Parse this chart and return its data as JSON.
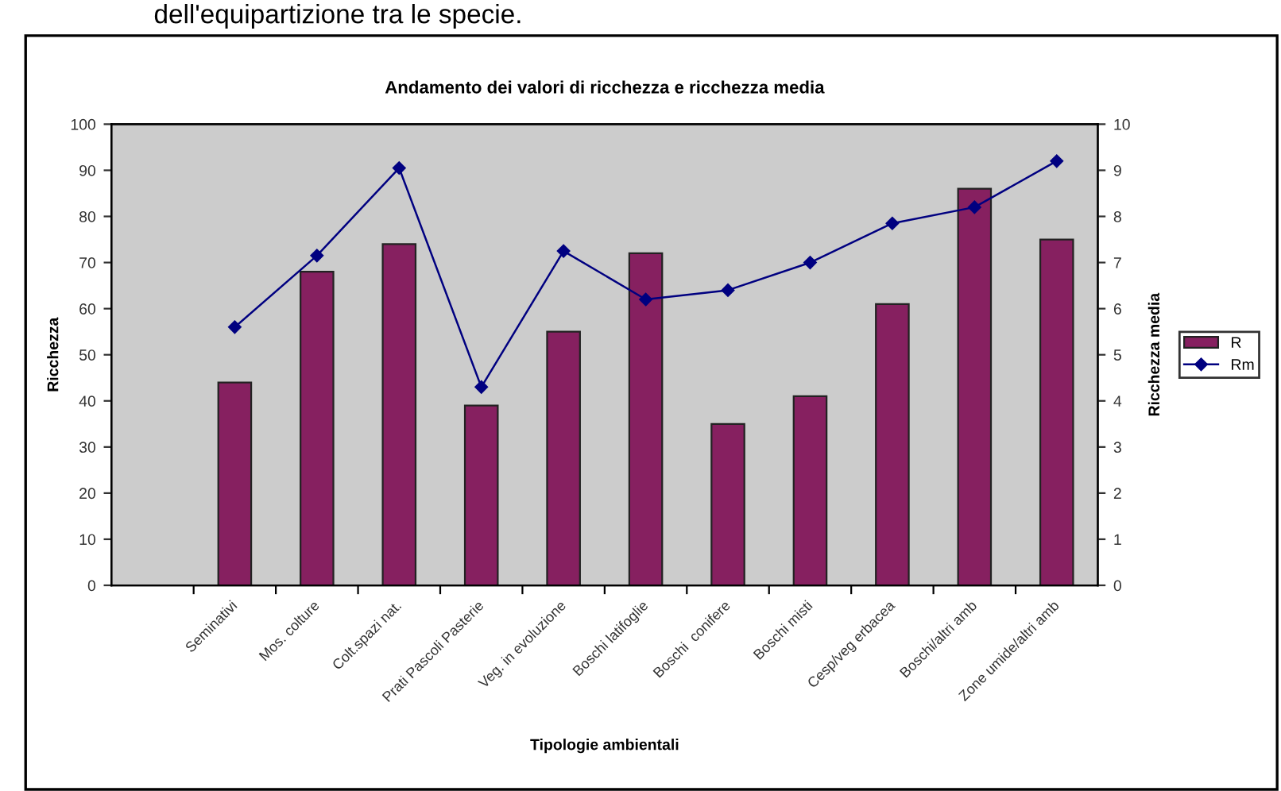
{
  "chart_data": {
    "type": "bar",
    "title": "Andamento dei valori di ricchezza e ricchezza media",
    "annotations": [
      "dell'equipartizione tra le specie."
    ],
    "xlabel": "Tipologie ambientali",
    "ylabel": "Ricchezza",
    "y2label": "Ricchezza media",
    "categories": [
      null,
      "Seminativi",
      "Mos. colture",
      "Colt.spazi nat.",
      "Prati Pascoli Pasterie",
      "Veg. in evoluzione",
      "Boschi latifoglie",
      "Boschi  conifere",
      "Boschi misti",
      "Cesp/veg erbacea",
      "Boschi/altri amb",
      "Zone umide/altri amb"
    ],
    "series": [
      {
        "name": "R",
        "color": "#862060",
        "values": [
          null,
          44,
          68,
          74,
          39,
          55,
          72,
          35,
          41,
          61,
          86,
          75
        ]
      },
      {
        "name": "Rm",
        "type": "line",
        "axis": "y2",
        "color": "#000080",
        "marker": "diamond",
        "values": [
          null,
          5.6,
          7.15,
          9.05,
          4.3,
          7.25,
          6.2,
          6.4,
          7.0,
          7.85,
          8.2,
          9.2
        ]
      }
    ],
    "ylim": [
      0,
      100
    ],
    "yticks": [
      0,
      10,
      20,
      30,
      40,
      50,
      60,
      70,
      80,
      90,
      100
    ],
    "y2lim": [
      0,
      10
    ],
    "y2ticks": [
      0,
      1,
      2,
      3,
      4,
      5,
      6,
      7,
      8,
      9,
      10
    ],
    "grid": false,
    "legend": "right"
  }
}
